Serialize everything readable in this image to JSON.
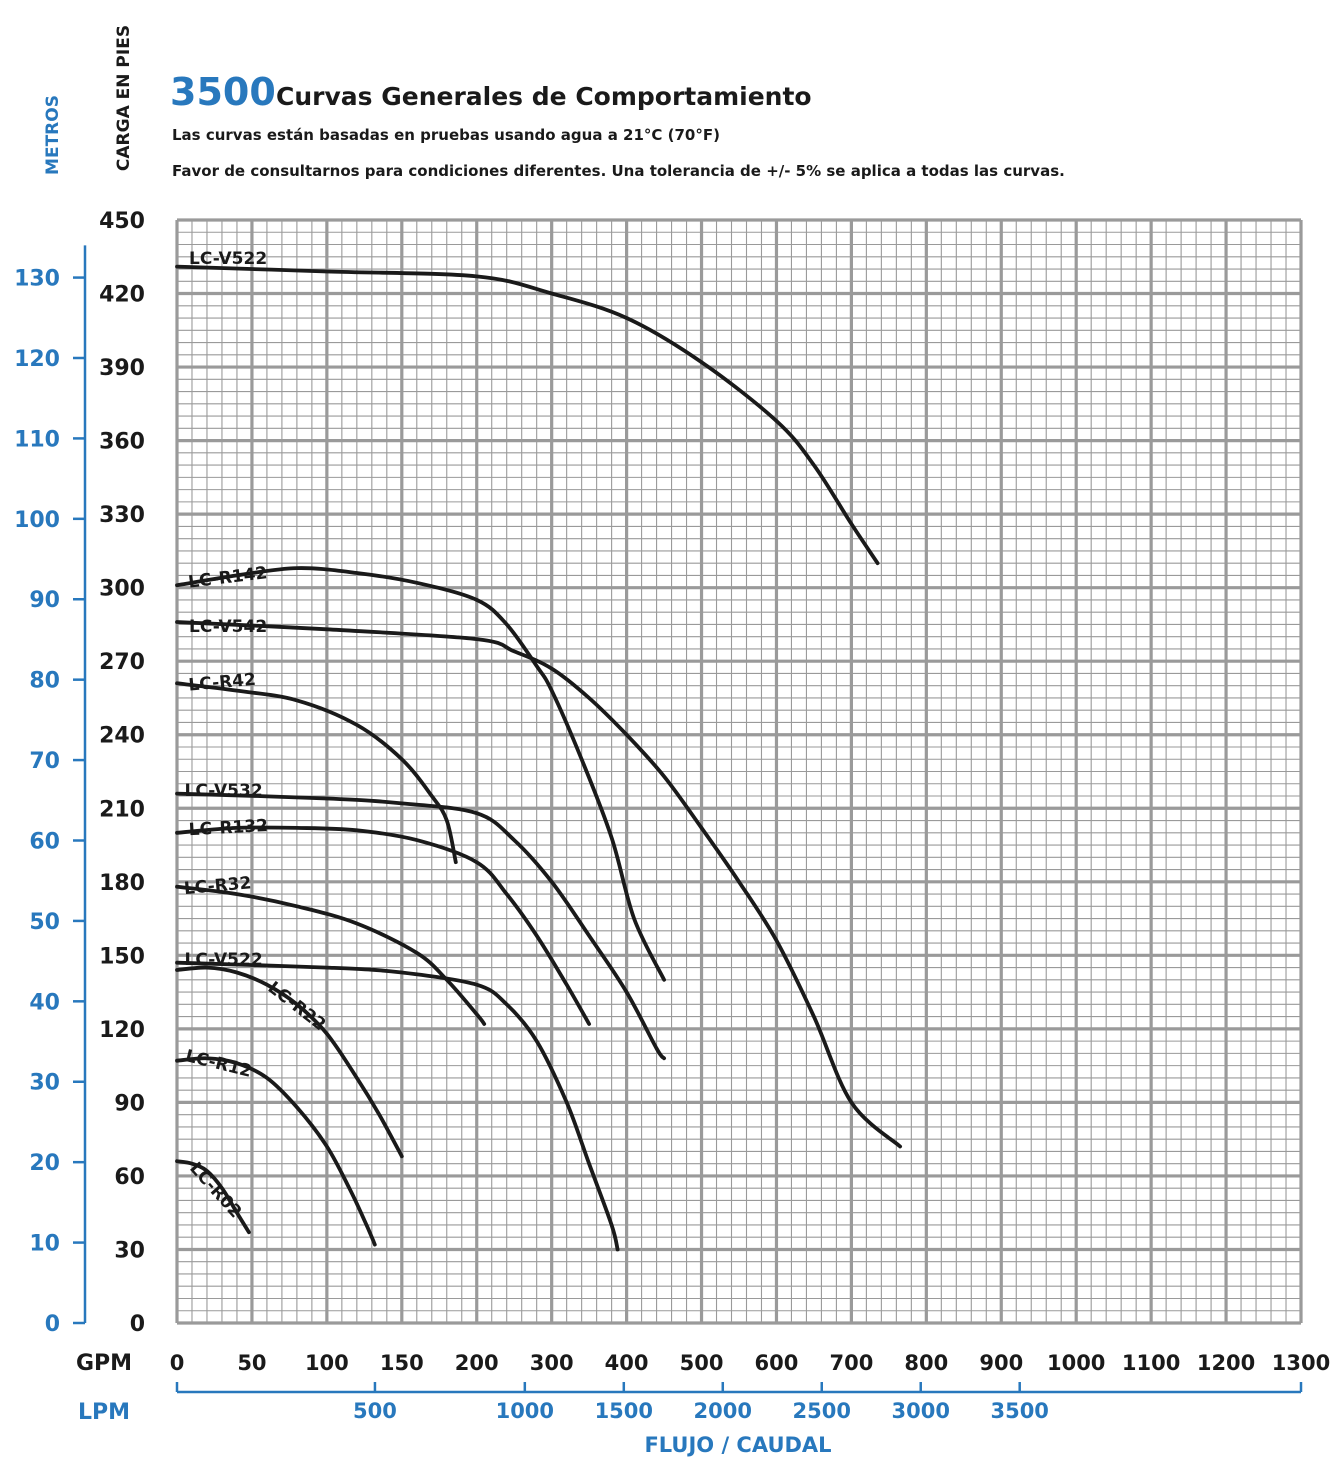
{
  "header": {
    "model_number": "3500",
    "title": "Curvas Generales de Comportamiento",
    "subtitle_1": "Las curvas están basadas en pruebas usando agua a 21°C (70°F)",
    "subtitle_2": "Favor de consultarnos para condiciones diferentes. Una tolerancia de +/- 5% se aplica a todas las curvas."
  },
  "colors": {
    "blue": "#2878bd",
    "black": "#1a1a1a",
    "grid": "#9a9a9a"
  },
  "chart_data": {
    "type": "line",
    "title": "3500 Curvas Generales de Comportamiento",
    "xlabel": "FLUJO / CAUDAL",
    "x_unit_primary": "GPM",
    "x_unit_secondary": "LPM",
    "ylabel_left": "METROS",
    "ylabel_right": "CARGA EN PIES",
    "grid": true,
    "x_ticks_gpm": [
      0,
      50,
      100,
      150,
      200,
      300,
      400,
      500,
      600,
      700,
      800,
      900,
      1000,
      1100,
      1200,
      1300
    ],
    "x_ticks_lpm": [
      500,
      1000,
      1500,
      2000,
      2500,
      3000,
      3500
    ],
    "y_ticks_feet": [
      0,
      30,
      60,
      90,
      120,
      150,
      180,
      210,
      240,
      270,
      300,
      330,
      360,
      390,
      420,
      450
    ],
    "y_ticks_meters": [
      0,
      10,
      20,
      30,
      40,
      50,
      60,
      70,
      80,
      90,
      100,
      110,
      120,
      130
    ],
    "ylim_feet": [
      0,
      450
    ],
    "series": [
      {
        "name": "LC-V522",
        "label_gpm": 8,
        "label_ft": 432,
        "label_rot": 0,
        "points": [
          [
            0,
            431
          ],
          [
            100,
            429
          ],
          [
            200,
            427
          ],
          [
            300,
            420
          ],
          [
            400,
            410
          ],
          [
            500,
            392
          ],
          [
            600,
            368
          ],
          [
            650,
            350
          ],
          [
            700,
            326
          ],
          [
            735,
            310
          ]
        ]
      },
      {
        "name": "LC-R142",
        "label_gpm": 8,
        "label_ft": 300,
        "label_rot": -7,
        "points": [
          [
            0,
            301
          ],
          [
            40,
            305
          ],
          [
            80,
            308
          ],
          [
            120,
            306
          ],
          [
            160,
            302
          ],
          [
            200,
            295
          ],
          [
            240,
            285
          ],
          [
            280,
            268
          ],
          [
            300,
            258
          ],
          [
            340,
            230
          ],
          [
            380,
            198
          ],
          [
            410,
            165
          ],
          [
            450,
            140
          ]
        ]
      },
      {
        "name": "LC-V542",
        "label_gpm": 8,
        "label_ft": 282,
        "label_rot": 0,
        "points": [
          [
            0,
            286
          ],
          [
            100,
            283
          ],
          [
            200,
            279
          ],
          [
            250,
            274
          ],
          [
            300,
            267
          ],
          [
            350,
            255
          ],
          [
            400,
            240
          ],
          [
            450,
            223
          ],
          [
            500,
            202
          ],
          [
            550,
            180
          ],
          [
            600,
            156
          ],
          [
            650,
            125
          ],
          [
            700,
            90
          ],
          [
            765,
            72
          ]
        ]
      },
      {
        "name": "LC-R42",
        "label_gpm": 8,
        "label_ft": 258,
        "label_rot": -5,
        "points": [
          [
            0,
            261
          ],
          [
            40,
            258
          ],
          [
            80,
            254
          ],
          [
            120,
            244
          ],
          [
            150,
            230
          ],
          [
            170,
            215
          ],
          [
            180,
            205
          ],
          [
            186,
            188
          ]
        ]
      },
      {
        "name": "LC-V532",
        "label_gpm": 5,
        "label_ft": 215,
        "label_rot": 0,
        "points": [
          [
            0,
            216
          ],
          [
            100,
            214
          ],
          [
            150,
            212
          ],
          [
            200,
            208
          ],
          [
            250,
            197
          ],
          [
            300,
            180
          ],
          [
            350,
            158
          ],
          [
            400,
            135
          ],
          [
            440,
            112
          ],
          [
            450,
            108
          ]
        ]
      },
      {
        "name": "LC-R132",
        "label_gpm": 8,
        "label_ft": 199,
        "label_rot": -3,
        "points": [
          [
            0,
            200
          ],
          [
            40,
            202
          ],
          [
            80,
            202
          ],
          [
            120,
            201
          ],
          [
            160,
            197
          ],
          [
            200,
            188
          ],
          [
            240,
            175
          ],
          [
            280,
            158
          ],
          [
            320,
            138
          ],
          [
            350,
            122
          ]
        ]
      },
      {
        "name": "LC-R32",
        "label_gpm": 5,
        "label_ft": 175,
        "label_rot": -5,
        "points": [
          [
            0,
            178
          ],
          [
            40,
            175
          ],
          [
            80,
            170
          ],
          [
            120,
            163
          ],
          [
            160,
            151
          ],
          [
            180,
            140
          ],
          [
            200,
            126
          ],
          [
            210,
            122
          ]
        ]
      },
      {
        "name": "LC-V522",
        "label_gpm": 5,
        "label_ft": 146,
        "label_rot": 0,
        "points": [
          [
            0,
            147
          ],
          [
            100,
            145
          ],
          [
            150,
            143
          ],
          [
            200,
            138
          ],
          [
            240,
            130
          ],
          [
            280,
            115
          ],
          [
            320,
            90
          ],
          [
            350,
            65
          ],
          [
            380,
            40
          ],
          [
            388,
            30
          ]
        ]
      },
      {
        "name": "LC-R22",
        "label_gpm": 60,
        "label_ft": 136,
        "label_rot": 38,
        "points": [
          [
            0,
            144
          ],
          [
            20,
            145
          ],
          [
            40,
            143
          ],
          [
            60,
            138
          ],
          [
            80,
            130
          ],
          [
            100,
            118
          ],
          [
            120,
            100
          ],
          [
            135,
            85
          ],
          [
            150,
            68
          ]
        ]
      },
      {
        "name": "LC-R12",
        "label_gpm": 5,
        "label_ft": 107,
        "label_rot": 14,
        "points": [
          [
            0,
            107
          ],
          [
            20,
            108
          ],
          [
            40,
            106
          ],
          [
            60,
            100
          ],
          [
            80,
            88
          ],
          [
            100,
            72
          ],
          [
            115,
            55
          ],
          [
            125,
            42
          ],
          [
            130,
            35
          ],
          [
            132,
            32
          ]
        ]
      },
      {
        "name": "LC-R02",
        "label_gpm": 8,
        "label_ft": 63,
        "label_rot": 48,
        "points": [
          [
            0,
            66
          ],
          [
            10,
            65
          ],
          [
            20,
            62
          ],
          [
            30,
            55
          ],
          [
            40,
            45
          ],
          [
            48,
            37
          ]
        ]
      }
    ]
  }
}
